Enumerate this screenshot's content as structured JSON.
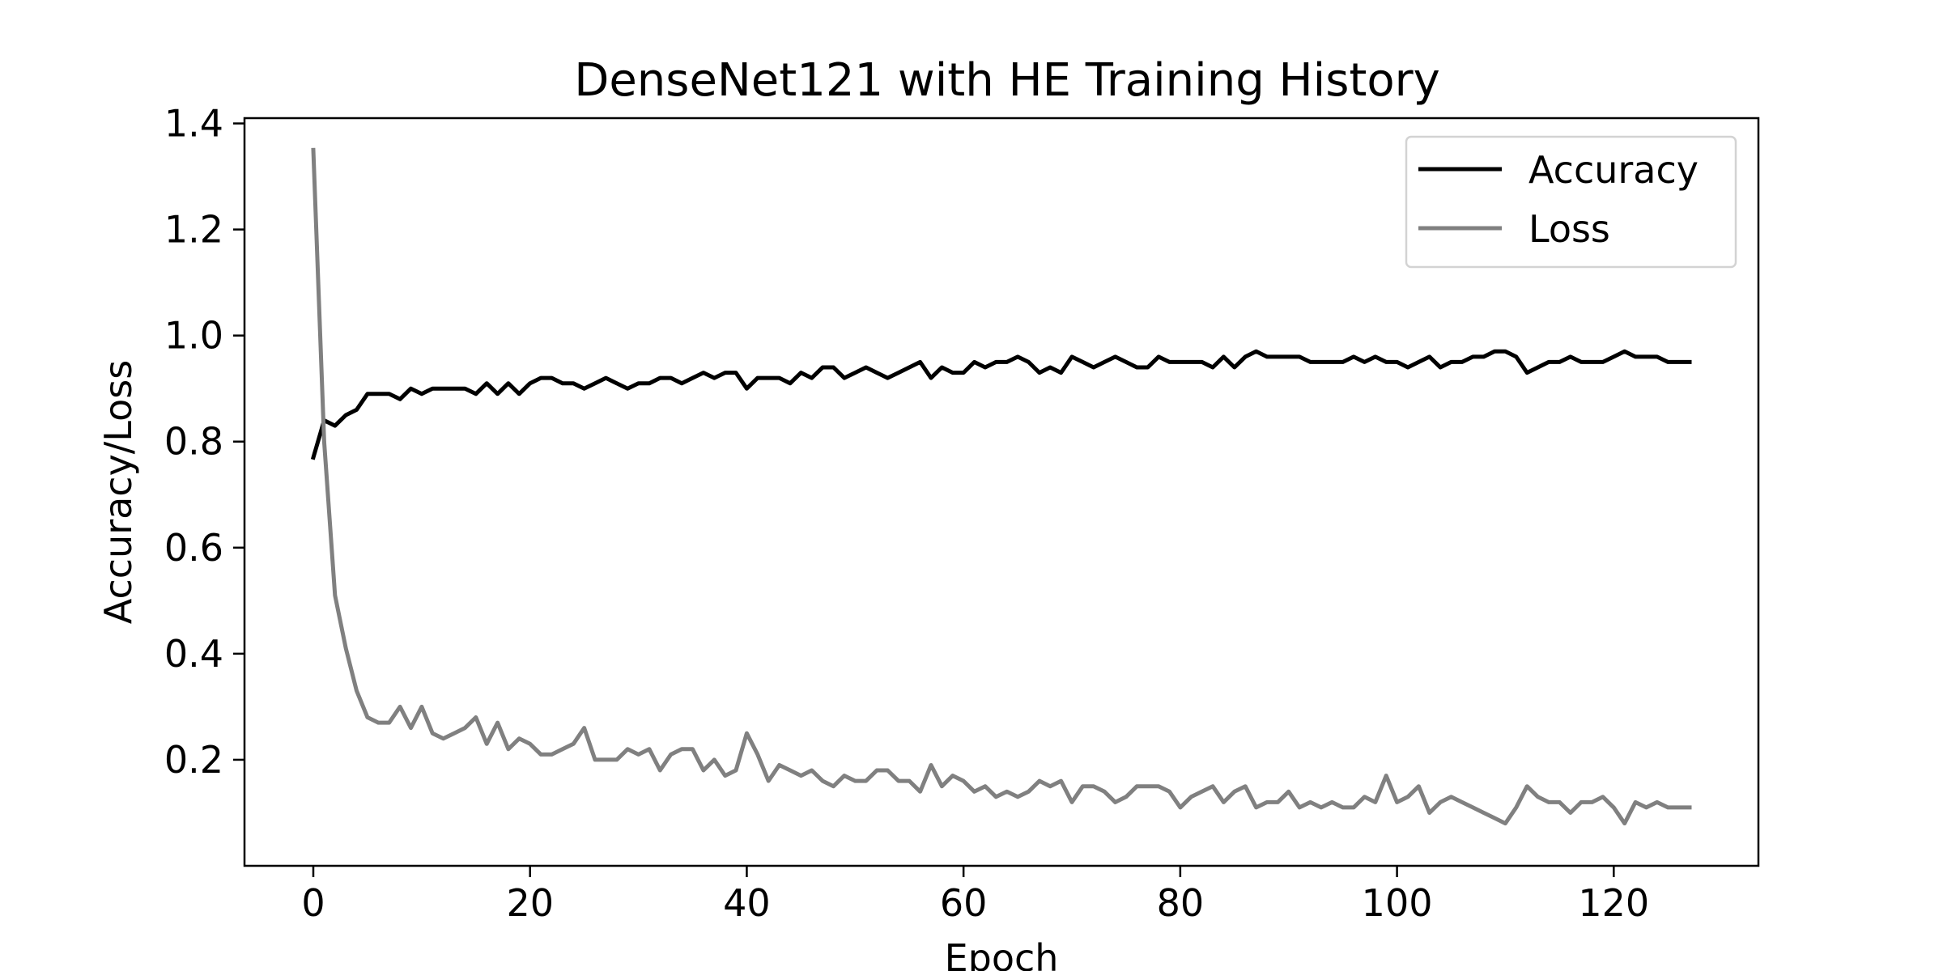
{
  "chart_data": {
    "type": "line",
    "title": "DenseNet121 with HE Training History",
    "xlabel": "Epoch",
    "ylabel": "Accuracy/Loss",
    "xlim": [
      -6.35,
      133.35
    ],
    "ylim": [
      0.0,
      1.41
    ],
    "xticks": [
      0,
      20,
      40,
      60,
      80,
      100,
      120
    ],
    "yticks": [
      0.2,
      0.4,
      0.6,
      0.8,
      1.0,
      1.2,
      1.4
    ],
    "ytick_labels": [
      "0.2",
      "0.4",
      "0.6",
      "0.8",
      "1.0",
      "1.2",
      "1.4"
    ],
    "grid": false,
    "legend_position": "top-right",
    "series": [
      {
        "name": "Accuracy",
        "color": "#000000",
        "x_start": 0,
        "values": [
          0.77,
          0.84,
          0.83,
          0.85,
          0.86,
          0.89,
          0.89,
          0.89,
          0.88,
          0.9,
          0.89,
          0.9,
          0.9,
          0.9,
          0.9,
          0.89,
          0.91,
          0.89,
          0.91,
          0.89,
          0.91,
          0.92,
          0.92,
          0.91,
          0.91,
          0.9,
          0.91,
          0.92,
          0.91,
          0.9,
          0.91,
          0.91,
          0.92,
          0.92,
          0.91,
          0.92,
          0.93,
          0.92,
          0.93,
          0.93,
          0.9,
          0.92,
          0.92,
          0.92,
          0.91,
          0.93,
          0.92,
          0.94,
          0.94,
          0.92,
          0.93,
          0.94,
          0.93,
          0.92,
          0.93,
          0.94,
          0.95,
          0.92,
          0.94,
          0.93,
          0.93,
          0.95,
          0.94,
          0.95,
          0.95,
          0.96,
          0.95,
          0.93,
          0.94,
          0.93,
          0.96,
          0.95,
          0.94,
          0.95,
          0.96,
          0.95,
          0.94,
          0.94,
          0.96,
          0.95,
          0.95,
          0.95,
          0.95,
          0.94,
          0.96,
          0.94,
          0.96,
          0.97,
          0.96,
          0.96,
          0.96,
          0.96,
          0.95,
          0.95,
          0.95,
          0.95,
          0.96,
          0.95,
          0.96,
          0.95,
          0.95,
          0.94,
          0.95,
          0.96,
          0.94,
          0.95,
          0.95,
          0.96,
          0.96,
          0.97,
          0.97,
          0.96,
          0.93,
          0.94,
          0.95,
          0.95,
          0.96,
          0.95,
          0.95,
          0.95,
          0.96,
          0.97,
          0.96,
          0.96,
          0.96,
          0.95,
          0.95,
          0.95
        ]
      },
      {
        "name": "Loss",
        "color": "#808080",
        "x_start": 0,
        "values": [
          1.35,
          0.8,
          0.51,
          0.41,
          0.33,
          0.28,
          0.27,
          0.27,
          0.3,
          0.26,
          0.3,
          0.25,
          0.24,
          0.25,
          0.26,
          0.28,
          0.23,
          0.27,
          0.22,
          0.24,
          0.23,
          0.21,
          0.21,
          0.22,
          0.23,
          0.26,
          0.2,
          0.2,
          0.2,
          0.22,
          0.21,
          0.22,
          0.18,
          0.21,
          0.22,
          0.22,
          0.18,
          0.2,
          0.17,
          0.18,
          0.25,
          0.21,
          0.16,
          0.19,
          0.18,
          0.17,
          0.18,
          0.16,
          0.15,
          0.17,
          0.16,
          0.16,
          0.18,
          0.18,
          0.16,
          0.16,
          0.14,
          0.19,
          0.15,
          0.17,
          0.16,
          0.14,
          0.15,
          0.13,
          0.14,
          0.13,
          0.14,
          0.16,
          0.15,
          0.16,
          0.12,
          0.15,
          0.15,
          0.14,
          0.12,
          0.13,
          0.15,
          0.15,
          0.15,
          0.14,
          0.11,
          0.13,
          0.14,
          0.15,
          0.12,
          0.14,
          0.15,
          0.11,
          0.12,
          0.12,
          0.14,
          0.11,
          0.12,
          0.11,
          0.12,
          0.11,
          0.11,
          0.13,
          0.12,
          0.17,
          0.12,
          0.13,
          0.15,
          0.1,
          0.12,
          0.13,
          0.12,
          0.11,
          0.1,
          0.09,
          0.08,
          0.11,
          0.15,
          0.13,
          0.12,
          0.12,
          0.1,
          0.12,
          0.12,
          0.13,
          0.11,
          0.08,
          0.12,
          0.11,
          0.12,
          0.11,
          0.11,
          0.11
        ]
      }
    ]
  }
}
